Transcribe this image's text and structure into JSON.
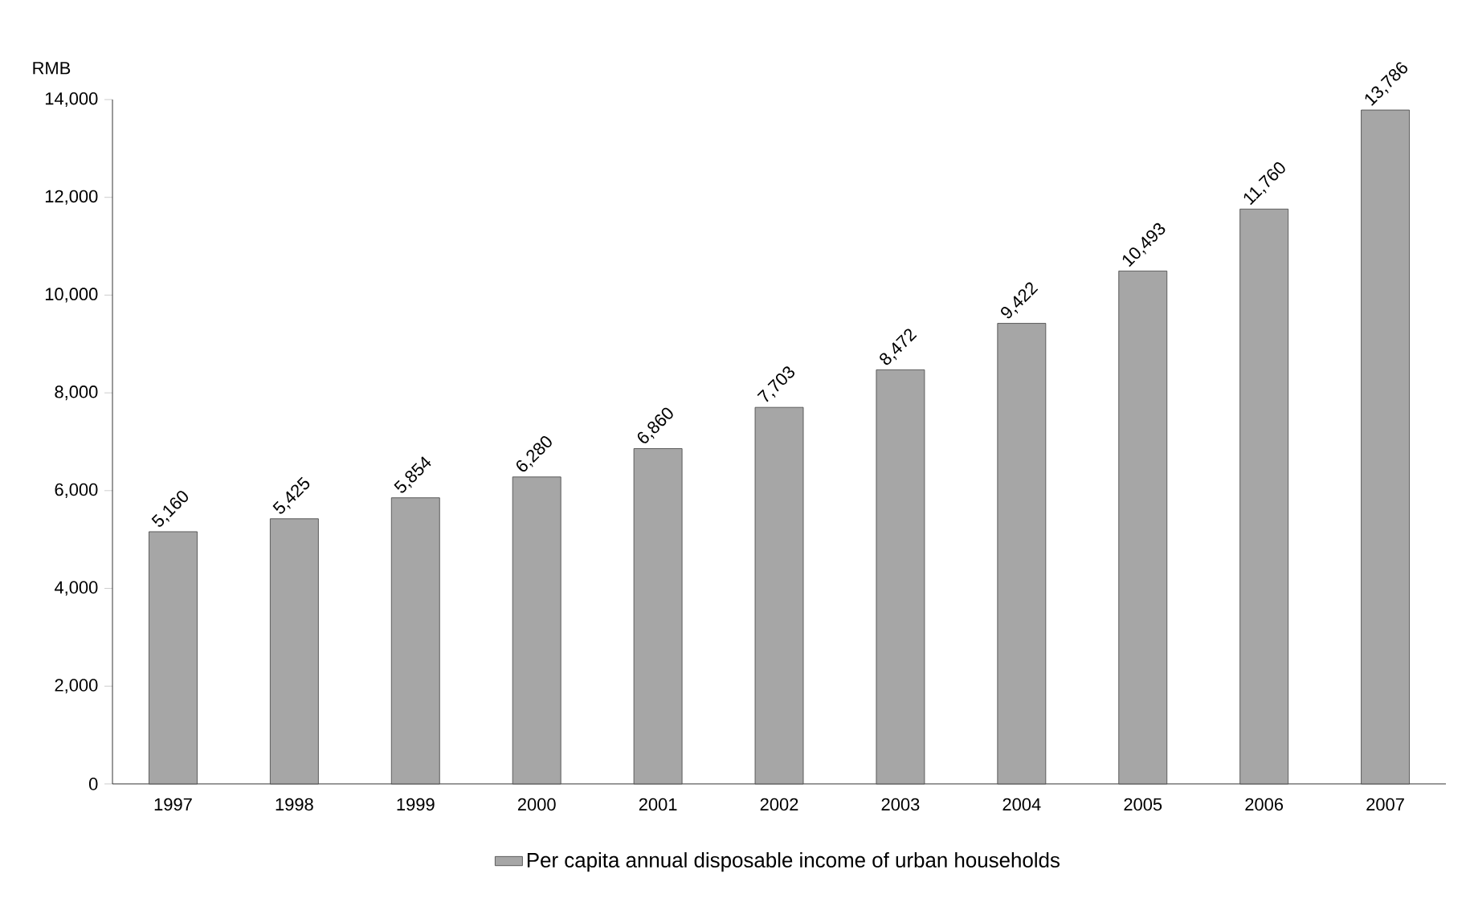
{
  "chart_data": {
    "type": "bar",
    "ylabel": "RMB",
    "categories": [
      "1997",
      "1998",
      "1999",
      "2000",
      "2001",
      "2002",
      "2003",
      "2004",
      "2005",
      "2006",
      "2007"
    ],
    "series": [
      {
        "name": "Per capita annual disposable income of urban households",
        "color": "#a6a6a6",
        "values": [
          5160,
          5425,
          5854,
          6280,
          6860,
          7703,
          8472,
          9422,
          10493,
          11760,
          13786
        ],
        "value_labels": [
          "5,160",
          "5,425",
          "5,854",
          "6,280",
          "6,860",
          "7,703",
          "8,472",
          "9,422",
          "10,493",
          "11,760",
          "13,786"
        ]
      }
    ],
    "ylim": [
      0,
      14000
    ],
    "yticks": [
      {
        "value": 0,
        "label": "0"
      },
      {
        "value": 2000,
        "label": "2,000"
      },
      {
        "value": 4000,
        "label": "4,000"
      },
      {
        "value": 6000,
        "label": "6,000"
      },
      {
        "value": 8000,
        "label": "8,000"
      },
      {
        "value": 10000,
        "label": "10,000"
      },
      {
        "value": 12000,
        "label": "12,000"
      },
      {
        "value": 14000,
        "label": "14,000"
      }
    ],
    "grid": false,
    "legend": "bottom"
  }
}
